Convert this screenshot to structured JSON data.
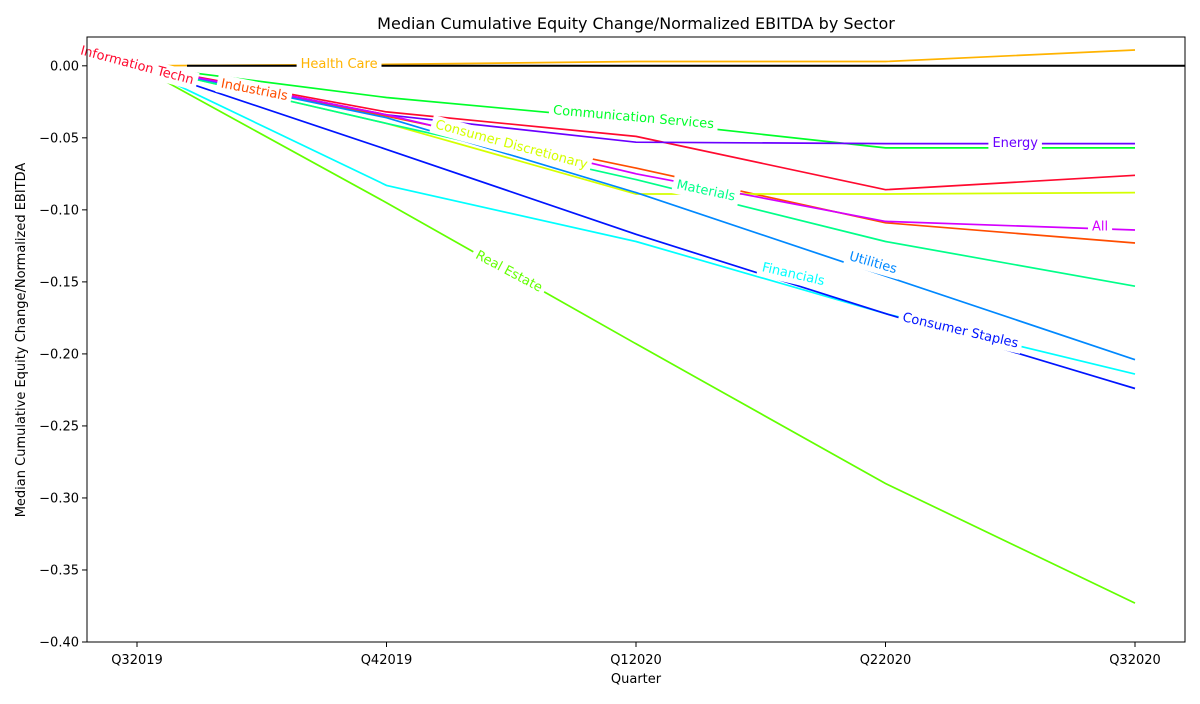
{
  "chart_data": {
    "type": "line",
    "title": "Median Cumulative Equity Change/Normalized EBITDA by Sector",
    "xlabel": "Quarter",
    "ylabel": "Median Cumulative Equity Change/Normalized EBITDA",
    "categories": [
      "Q32019",
      "Q42019",
      "Q12020",
      "Q22020",
      "Q32020"
    ],
    "ylim": [
      -0.4,
      0.02
    ],
    "yticks": [
      0.0,
      -0.05,
      -0.1,
      -0.15,
      -0.2,
      -0.25,
      -0.3,
      -0.35,
      -0.4
    ],
    "ytick_labels": [
      "0.00",
      "−0.05",
      "−0.10",
      "−0.15",
      "−0.20",
      "−0.25",
      "−0.30",
      "−0.35",
      "−0.40"
    ],
    "grid": false,
    "legend": "inline labels",
    "reference_line": {
      "y": 0,
      "color": "#000000"
    },
    "series": [
      {
        "name": "Information Techn",
        "color": "#ff0a2f",
        "values": [
          0.0,
          -0.032,
          -0.049,
          -0.086,
          -0.076
        ]
      },
      {
        "name": "Industrials",
        "color": "#ff4d00",
        "values": [
          0.0,
          -0.035,
          -0.071,
          -0.109,
          -0.123
        ]
      },
      {
        "name": "Health Care",
        "color": "#ffb300",
        "values": [
          0.0,
          0.001,
          0.003,
          0.003,
          0.011
        ]
      },
      {
        "name": "Consumer Discretionary",
        "color": "#d4ff00",
        "values": [
          0.0,
          -0.04,
          -0.089,
          -0.089,
          -0.088
        ]
      },
      {
        "name": "Real Estate",
        "color": "#62ff00",
        "values": [
          0.0,
          -0.095,
          -0.193,
          -0.29,
          -0.373
        ]
      },
      {
        "name": "Communication Services",
        "color": "#00ff2a",
        "values": [
          0.0,
          -0.022,
          -0.038,
          -0.057,
          -0.057
        ]
      },
      {
        "name": "Materials",
        "color": "#00ff89",
        "values": [
          0.0,
          -0.04,
          -0.079,
          -0.122,
          -0.153
        ]
      },
      {
        "name": "Financials",
        "color": "#00ffff",
        "values": [
          0.0,
          -0.083,
          -0.122,
          -0.172,
          -0.214
        ]
      },
      {
        "name": "Utilities",
        "color": "#0088ff",
        "values": [
          0.0,
          -0.036,
          -0.088,
          -0.146,
          -0.204
        ]
      },
      {
        "name": "Consumer Staples",
        "color": "#0014ff",
        "values": [
          0.0,
          -0.058,
          -0.117,
          -0.172,
          -0.224
        ]
      },
      {
        "name": "Energy",
        "color": "#6a00ff",
        "values": [
          0.0,
          -0.034,
          -0.053,
          -0.054,
          -0.054
        ]
      },
      {
        "name": "All",
        "color": "#d400ff",
        "values": [
          0.0,
          -0.034,
          -0.075,
          -0.108,
          -0.114
        ]
      }
    ],
    "inline_labels": [
      {
        "series": "Information Techn",
        "x": 0.0,
        "y": 0.0,
        "angle": 15
      },
      {
        "series": "Industrials",
        "x": 0.47,
        "y": -0.017,
        "angle": 11
      },
      {
        "series": "Health Care",
        "x": 0.81,
        "y": 0.001,
        "angle": 0
      },
      {
        "series": "Consumer Discretionary",
        "x": 1.5,
        "y": -0.055,
        "angle": 15
      },
      {
        "series": "Real Estate",
        "x": 1.49,
        "y": -0.143,
        "angle": 28
      },
      {
        "series": "Communication Services",
        "x": 1.99,
        "y": -0.036,
        "angle": 5
      },
      {
        "series": "Materials",
        "x": 2.28,
        "y": -0.087,
        "angle": 12
      },
      {
        "series": "Financials",
        "x": 2.63,
        "y": -0.145,
        "angle": 13
      },
      {
        "series": "Utilities",
        "x": 2.95,
        "y": -0.137,
        "angle": 16
      },
      {
        "series": "Consumer Staples",
        "x": 3.3,
        "y": -0.184,
        "angle": 13
      },
      {
        "series": "Energy",
        "x": 3.52,
        "y": -0.054,
        "angle": 0
      },
      {
        "series": "All",
        "x": 3.86,
        "y": -0.112,
        "angle": 0
      }
    ]
  }
}
